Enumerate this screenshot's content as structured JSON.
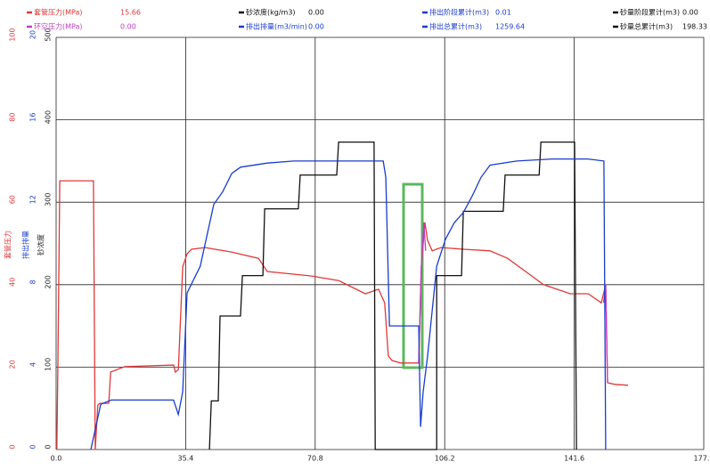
{
  "chart_data": {
    "type": "line",
    "ylabel": "套管压力",
    "ylim": [
      0,
      100
    ],
    "yticks": [
      0,
      20,
      40,
      60,
      80,
      100
    ],
    "y2label": "排出排量",
    "y2lim": [
      0,
      20
    ],
    "y2ticks": [
      0,
      4,
      8,
      12,
      16,
      20
    ],
    "y3label": "砂浓度",
    "y3lim": [
      0,
      500
    ],
    "y3ticks": [
      0,
      100,
      200,
      300,
      400,
      500
    ],
    "xlim": [
      0,
      177
    ],
    "xticks": [
      {
        "value": 0,
        "label": "0.0"
      },
      {
        "value": 35.4,
        "label": "35.4"
      },
      {
        "value": 70.8,
        "label": "70.8"
      },
      {
        "value": 106.2,
        "label": "106.2"
      },
      {
        "value": 141.6,
        "label": "141.6"
      },
      {
        "value": 177,
        "label": "177.0"
      }
    ],
    "grid": true,
    "series": [
      {
        "name": "套管压力(MPa)",
        "current": "15.66",
        "color": "#e03838",
        "axis": "y",
        "x": [
          0.2,
          0.5,
          1.0,
          10.2,
          10.7,
          11.4,
          11.9,
          14.4,
          14.9,
          18.7,
          32.1,
          32.6,
          33.4,
          34.6,
          35.8,
          37.0,
          40.7,
          48.0,
          55.3,
          57.7,
          69.9,
          77.2,
          84.5,
          88.1,
          89.8,
          90.8,
          91.8,
          94.2,
          99.1,
          99.8,
          100.8,
          101.5,
          102.8,
          103.9,
          105.2,
          111.3,
          118.6,
          123.4,
          128.3,
          133.2,
          140.5,
          145.4,
          149.0,
          150.2,
          150.7,
          152.7,
          156.3
        ],
        "values": [
          0,
          22.7,
          65.2,
          65.2,
          0,
          10.8,
          11.2,
          11.2,
          18.8,
          20.1,
          20.5,
          18.8,
          19.4,
          44.3,
          47.5,
          48.6,
          49.0,
          47.9,
          46.4,
          43.2,
          42.1,
          41.0,
          37.8,
          38.9,
          35.6,
          22.7,
          21.6,
          21.0,
          21.0,
          44.3,
          55.1,
          50.8,
          48.2,
          48.6,
          49.0,
          48.6,
          48.2,
          46.4,
          43.2,
          40.0,
          37.8,
          37.8,
          35.6,
          40.0,
          16.2,
          15.8,
          15.6
        ]
      },
      {
        "name": "环空压力(MPa)",
        "current": "0.00",
        "color": "#c03cc8",
        "axis": "y",
        "x": [
          99.1,
          99.8,
          100.5,
          101.0,
          null,
          149.6,
          150.2,
          150.7
        ],
        "values": [
          21.0,
          44.3,
          55.1,
          48.2,
          null,
          35.6,
          40.0,
          16.2
        ]
      },
      {
        "name": "砂浓度(kg/m3)",
        "current": "0.00",
        "color": "#111111",
        "axis": "y3",
        "x": [
          41.9,
          42.4,
          44.3,
          44.8,
          50.4,
          50.9,
          56.5,
          57.0,
          66.2,
          66.7,
          76.7,
          77.2,
          86.9,
          87.2,
          104.0,
          104.0,
          110.8,
          111.3,
          122.2,
          122.7,
          132.0,
          132.5,
          141.7,
          142.2
        ],
        "values": [
          0,
          59,
          59,
          162,
          162,
          211,
          211,
          292,
          292,
          333,
          333,
          373,
          373,
          0,
          0,
          211,
          211,
          289,
          289,
          333,
          333,
          373,
          373,
          0
        ]
      },
      {
        "name": "排出排量(m3/min)",
        "current": "0.00",
        "color": "#1a3ccc",
        "axis": "y2",
        "x": [
          9.5,
          12.2,
          15.1,
          32.1,
          33.4,
          34.6,
          35.8,
          39.4,
          43.1,
          45.5,
          48.0,
          50.4,
          57.7,
          65.0,
          77.2,
          89.4,
          90.1,
          91.1,
          99.1,
          99.6,
          100.3,
          101.5,
          104.0,
          106.4,
          108.8,
          111.3,
          113.7,
          116.1,
          118.6,
          125.9,
          135.6,
          145.4,
          149.7,
          150.2
        ],
        "values": [
          0,
          2.2,
          2.4,
          2.4,
          1.7,
          2.8,
          7.6,
          8.9,
          11.9,
          12.5,
          13.4,
          13.7,
          13.9,
          14.0,
          14.0,
          14.0,
          13.2,
          6.0,
          6.0,
          1.1,
          2.8,
          4.5,
          8.9,
          10.2,
          11.0,
          11.5,
          12.3,
          13.2,
          13.8,
          14.0,
          14.1,
          14.1,
          14.0,
          0
        ]
      }
    ],
    "readouts": [
      {
        "label": "排出阶段累计(m3)",
        "value": "0.01",
        "color": "#1a3ccc"
      },
      {
        "label": "排出总累计(m3)",
        "value": "1259.64",
        "color": "#1a3ccc"
      },
      {
        "label": "砂量阶段累计(m3)",
        "value": "0.00",
        "color": "#111111"
      },
      {
        "label": "砂量总累计(m3)",
        "value": "198.33",
        "color": "#111111"
      }
    ]
  }
}
